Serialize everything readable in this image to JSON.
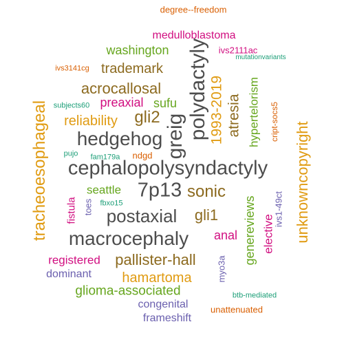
{
  "colors": {
    "dark_gray": "#4d4d4d",
    "brown": "#8c6a1f",
    "gold": "#e09b12",
    "green": "#66a61e",
    "magenta": "#d10e80",
    "purple": "#6a5fae",
    "teal": "#1b9e77",
    "orange_red": "#d95f02"
  },
  "words": [
    "cephalopolysyndactyly",
    "polydactyly",
    "greig",
    "hedgehog",
    "7p13",
    "macrocephaly",
    "postaxial",
    "tracheoesophageal",
    "unknowncopyright",
    "acrocallosal",
    "gli2",
    "sonic",
    "pallister-hall",
    "1993-2019",
    "atresia",
    "gli1",
    "trademark",
    "reliability",
    "hamartoma",
    "washington",
    "glioma-associated",
    "genereviews",
    "hypertelorism",
    "preaxial",
    "sufu",
    "registered",
    "medulloblastoma",
    "seattle",
    "anal",
    "elective",
    "dominant",
    "fistula",
    "congenital",
    "frameshift",
    "ndgd",
    "degree--freedom",
    "ivs2111ac",
    "ivs3141cg",
    "myo3a",
    "toes",
    "ivs1-49ct",
    "cript-socs5",
    "unattenuated",
    "btb-mediated",
    "subjects60",
    "mutationvariants",
    "fam179a",
    "fbxo15",
    "pujo"
  ]
}
